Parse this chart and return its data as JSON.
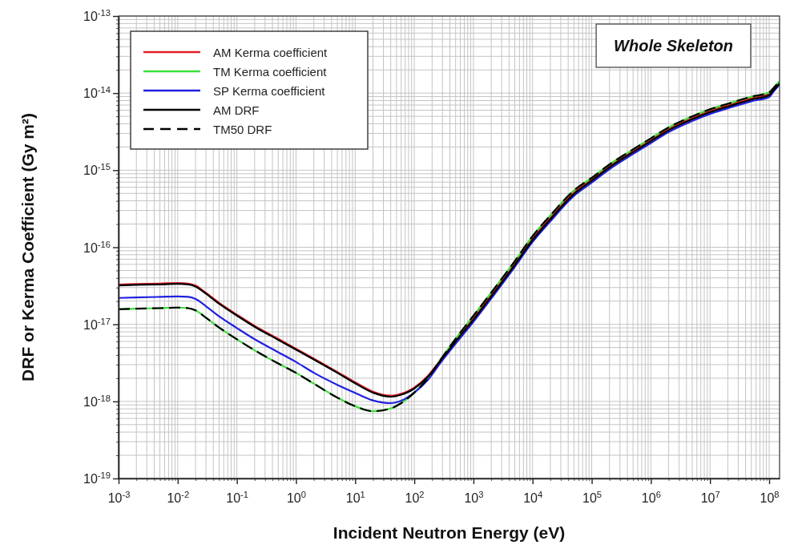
{
  "chart_data": {
    "type": "line",
    "xlabel": "Incident Neutron Energy (eV)",
    "ylabel": "DRF or Kerma Coefficient (Gy m²)",
    "annotations": [
      "Whole Skeleton"
    ],
    "log": "xy",
    "grid": true,
    "legend": "top left",
    "xlim": [
      0.001,
      150000000.0
    ],
    "ylim": [
      1e-19,
      1e-13
    ],
    "xticks": [
      {
        "value": 0.001,
        "label": "10$^{-3}$"
      },
      {
        "value": 0.002,
        "label": null
      },
      {
        "value": 0.003,
        "label": null
      },
      {
        "value": 0.004,
        "label": null
      },
      {
        "value": 0.005,
        "label": null
      },
      {
        "value": 0.006,
        "label": null
      },
      {
        "value": 0.007,
        "label": null
      },
      {
        "value": 0.008,
        "label": null
      },
      {
        "value": 0.009,
        "label": null
      },
      {
        "value": 0.01,
        "label": "10$^{-2}$"
      },
      {
        "value": 0.02,
        "label": null
      },
      {
        "value": 0.03,
        "label": null
      },
      {
        "value": 0.04,
        "label": null
      },
      {
        "value": 0.05,
        "label": null
      },
      {
        "value": 0.06,
        "label": null
      },
      {
        "value": 0.07,
        "label": null
      },
      {
        "value": 0.08,
        "label": null
      },
      {
        "value": 0.09,
        "label": null
      },
      {
        "value": 0.1,
        "label": "10$^{-1}$"
      },
      {
        "value": 0.2,
        "label": null
      },
      {
        "value": 0.3,
        "label": null
      },
      {
        "value": 0.4,
        "label": null
      },
      {
        "value": 0.5,
        "label": null
      },
      {
        "value": 0.6,
        "label": null
      },
      {
        "value": 0.7,
        "label": null
      },
      {
        "value": 0.8,
        "label": null
      },
      {
        "value": 0.9,
        "label": null
      },
      {
        "value": 1,
        "label": "10$^{0}$"
      },
      {
        "value": 2,
        "label": null
      },
      {
        "value": 3,
        "label": null
      },
      {
        "value": 4,
        "label": null
      },
      {
        "value": 5,
        "label": null
      },
      {
        "value": 6,
        "label": null
      },
      {
        "value": 7,
        "label": null
      },
      {
        "value": 8,
        "label": null
      },
      {
        "value": 9,
        "label": null
      },
      {
        "value": 10,
        "label": "10$^{1}$"
      },
      {
        "value": 20,
        "label": null
      },
      {
        "value": 30,
        "label": null
      },
      {
        "value": 40,
        "label": null
      },
      {
        "value": 50,
        "label": null
      },
      {
        "value": 60,
        "label": null
      },
      {
        "value": 70,
        "label": null
      },
      {
        "value": 80,
        "label": null
      },
      {
        "value": 90,
        "label": null
      },
      {
        "value": 100,
        "label": "10$^{2}$"
      },
      {
        "value": 200,
        "label": null
      },
      {
        "value": 300,
        "label": null
      },
      {
        "value": 400,
        "label": null
      },
      {
        "value": 500,
        "label": null
      },
      {
        "value": 600,
        "label": null
      },
      {
        "value": 700,
        "label": null
      },
      {
        "value": 800,
        "label": null
      },
      {
        "value": 900,
        "label": null
      },
      {
        "value": 1000,
        "label": "10$^{3}$"
      },
      {
        "value": 2000,
        "label": null
      },
      {
        "value": 3000,
        "label": null
      },
      {
        "value": 4000,
        "label": null
      },
      {
        "value": 5000,
        "label": null
      },
      {
        "value": 6000,
        "label": null
      },
      {
        "value": 7000,
        "label": null
      },
      {
        "value": 8000,
        "label": null
      },
      {
        "value": 9000,
        "label": null
      },
      {
        "value": 10000.0,
        "label": "10$^{4}$"
      },
      {
        "value": 20000.0,
        "label": null
      },
      {
        "value": 30000.0,
        "label": null
      },
      {
        "value": 40000.0,
        "label": null
      },
      {
        "value": 50000.0,
        "label": null
      },
      {
        "value": 60000.0,
        "label": null
      },
      {
        "value": 70000.0,
        "label": null
      },
      {
        "value": 80000.0,
        "label": null
      },
      {
        "value": 90000.0,
        "label": null
      },
      {
        "value": 100000.0,
        "label": "10$^{5}$"
      },
      {
        "value": 200000.0,
        "label": null
      },
      {
        "value": 300000.0,
        "label": null
      },
      {
        "value": 400000.0,
        "label": null
      },
      {
        "value": 500000.0,
        "label": null
      },
      {
        "value": 600000.0,
        "label": null
      },
      {
        "value": 700000.0,
        "label": null
      },
      {
        "value": 800000.0,
        "label": null
      },
      {
        "value": 900000.0,
        "label": null
      },
      {
        "value": 1000000.0,
        "label": "10$^{6}$"
      },
      {
        "value": 2000000.0,
        "label": null
      },
      {
        "value": 3000000.0,
        "label": null
      },
      {
        "value": 4000000.0,
        "label": null
      },
      {
        "value": 5000000.0,
        "label": null
      },
      {
        "value": 6000000.0,
        "label": null
      },
      {
        "value": 7000000.0,
        "label": null
      },
      {
        "value": 8000000.0,
        "label": null
      },
      {
        "value": 9000000.0,
        "label": null
      },
      {
        "value": 10000000.0,
        "label": "10$^{7}$"
      },
      {
        "value": 20000000.0,
        "label": null
      },
      {
        "value": 30000000.0,
        "label": null
      },
      {
        "value": 40000000.0,
        "label": null
      },
      {
        "value": 50000000.0,
        "label": null
      },
      {
        "value": 60000000.0,
        "label": null
      },
      {
        "value": 70000000.0,
        "label": null
      },
      {
        "value": 80000000.0,
        "label": null
      },
      {
        "value": 90000000.0,
        "label": null
      },
      {
        "value": 100000000.0,
        "label": "10$^{8}$"
      }
    ],
    "yticks": [
      {
        "value": 1e-19,
        "label": "10$^{-19}$"
      },
      {
        "value": 2e-19,
        "label": null
      },
      {
        "value": 3e-19,
        "label": null
      },
      {
        "value": 4e-19,
        "label": null
      },
      {
        "value": 5e-19,
        "label": null
      },
      {
        "value": 6e-19,
        "label": null
      },
      {
        "value": 7e-19,
        "label": null
      },
      {
        "value": 8e-19,
        "label": null
      },
      {
        "value": 9e-19,
        "label": null
      },
      {
        "value": 1e-18,
        "label": "10$^{-18}$"
      },
      {
        "value": 2e-18,
        "label": null
      },
      {
        "value": 3e-18,
        "label": null
      },
      {
        "value": 4e-18,
        "label": null
      },
      {
        "value": 5e-18,
        "label": null
      },
      {
        "value": 6e-18,
        "label": null
      },
      {
        "value": 7e-18,
        "label": null
      },
      {
        "value": 8e-18,
        "label": null
      },
      {
        "value": 9e-18,
        "label": null
      },
      {
        "value": 1e-17,
        "label": "10$^{-17}$"
      },
      {
        "value": 2e-17,
        "label": null
      },
      {
        "value": 3e-17,
        "label": null
      },
      {
        "value": 4e-17,
        "label": null
      },
      {
        "value": 5e-17,
        "label": null
      },
      {
        "value": 6e-17,
        "label": null
      },
      {
        "value": 7e-17,
        "label": null
      },
      {
        "value": 8e-17,
        "label": null
      },
      {
        "value": 9e-17,
        "label": null
      },
      {
        "value": 1e-16,
        "label": "10$^{-16}$"
      },
      {
        "value": 2e-16,
        "label": null
      },
      {
        "value": 3e-16,
        "label": null
      },
      {
        "value": 4e-16,
        "label": null
      },
      {
        "value": 5e-16,
        "label": null
      },
      {
        "value": 6e-16,
        "label": null
      },
      {
        "value": 7e-16,
        "label": null
      },
      {
        "value": 8e-16,
        "label": null
      },
      {
        "value": 9e-16,
        "label": null
      },
      {
        "value": 1e-15,
        "label": "10$^{-15}$"
      },
      {
        "value": 2e-15,
        "label": null
      },
      {
        "value": 3e-15,
        "label": null
      },
      {
        "value": 4e-15,
        "label": null
      },
      {
        "value": 5e-15,
        "label": null
      },
      {
        "value": 6e-15,
        "label": null
      },
      {
        "value": 7e-15,
        "label": null
      },
      {
        "value": 8e-15,
        "label": null
      },
      {
        "value": 9e-15,
        "label": null
      },
      {
        "value": 1e-14,
        "label": "10$^{-14}$"
      },
      {
        "value": 2e-14,
        "label": null
      },
      {
        "value": 3e-14,
        "label": null
      },
      {
        "value": 4e-14,
        "label": null
      },
      {
        "value": 5e-14,
        "label": null
      },
      {
        "value": 6e-14,
        "label": null
      },
      {
        "value": 7e-14,
        "label": null
      },
      {
        "value": 8e-14,
        "label": null
      },
      {
        "value": 9e-14,
        "label": null
      },
      {
        "value": 1e-13,
        "label": "10$^{-13}$"
      }
    ],
    "x": [
      0.001,
      0.002,
      0.005,
      0.01,
      0.015,
      0.02,
      0.03,
      0.05,
      0.1,
      0.2,
      0.5,
      1,
      2,
      5,
      10,
      20,
      40,
      60,
      100,
      170,
      280,
      500,
      1000,
      2000,
      5000,
      10000.0,
      20000.0,
      50000.0,
      100000.0,
      200000.0,
      500000.0,
      1000000.0,
      2000000.0,
      5000000.0,
      10000000.0,
      20000000.0,
      50000000.0,
      100000000.0,
      120000000.0,
      150000000.0
    ],
    "series": [
      {
        "name": "AM Kerma coefficient",
        "color": "#e41e26",
        "values": [
          3.27e-17,
          3.32e-17,
          3.37e-17,
          3.42e-17,
          3.37e-17,
          3.17e-17,
          2.55e-17,
          1.89e-17,
          1.33e-17,
          9.5e-18,
          6.45e-18,
          4.8e-18,
          3.58e-18,
          2.4e-18,
          1.76e-18,
          1.33e-18,
          1.18e-18,
          1.25e-18,
          1.5e-18,
          2.14e-18,
          3.48e-18,
          6.25e-18,
          1.21e-17,
          2.42e-17,
          6.2e-17,
          1.3e-16,
          2.43e-16,
          5.1e-16,
          7.6e-16,
          1.13e-15,
          1.78e-15,
          2.48e-15,
          3.42e-15,
          4.76e-15,
          5.88e-15,
          6.94e-15,
          8.57e-15,
          9.78e-15,
          1.14e-14,
          1.38e-14
        ]
      },
      {
        "name": "TM Kerma coefficient",
        "color": "#3ae03a",
        "values": [
          1.57e-17,
          1.6e-17,
          1.62e-17,
          1.65e-17,
          1.62e-17,
          1.52e-17,
          1.22e-17,
          9.1e-18,
          6.4e-18,
          4.6e-18,
          3.1e-18,
          2.35e-18,
          1.7e-18,
          1.12e-18,
          8.65e-19,
          7.45e-19,
          8.1e-19,
          9.5e-19,
          1.3e-18,
          2e-18,
          3.5e-18,
          6.5e-18,
          1.29e-17,
          2.58e-17,
          6.6e-17,
          1.39e-16,
          2.59e-16,
          5.45e-16,
          7.95e-16,
          1.19e-15,
          1.86e-15,
          2.59e-15,
          3.59e-15,
          4.99e-15,
          6.16e-15,
          7.27e-15,
          8.98e-15,
          1.02e-14,
          1.18e-14,
          1.43e-14
        ]
      },
      {
        "name": "SP Kerma coefficient",
        "color": "#2020e0",
        "values": [
          2.2e-17,
          2.23e-17,
          2.27e-17,
          2.3e-17,
          2.27e-17,
          2.13e-17,
          1.72e-17,
          1.27e-17,
          8.95e-18,
          6.4e-18,
          4.35e-18,
          3.25e-18,
          2.35e-18,
          1.64e-18,
          1.29e-18,
          1.03e-18,
          9.5e-19,
          1.02e-18,
          1.3e-18,
          1.9e-18,
          3.2e-18,
          5.6e-18,
          1.08e-17,
          2.16e-17,
          5.55e-17,
          1.17e-16,
          2.17e-16,
          4.65e-16,
          6.9e-16,
          1.03e-15,
          1.62e-15,
          2.25e-15,
          3.12e-15,
          4.35e-15,
          5.37e-15,
          6.34e-15,
          7.83e-15,
          8.93e-15,
          1.06e-14,
          1.29e-14
        ]
      },
      {
        "name": "AM DRF",
        "color": "#000000",
        "values": [
          3.2e-17,
          3.25e-17,
          3.3e-17,
          3.35e-17,
          3.3e-17,
          3.1e-17,
          2.5e-17,
          1.85e-17,
          1.3e-17,
          9.3e-18,
          6.3e-18,
          4.7e-18,
          3.5e-18,
          2.35e-18,
          1.72e-18,
          1.3e-18,
          1.15e-18,
          1.22e-18,
          1.47e-18,
          2.09e-18,
          3.4e-18,
          6e-18,
          1.15e-17,
          2.3e-17,
          5.9e-17,
          1.24e-16,
          2.31e-16,
          4.9e-16,
          7.3e-16,
          1.09e-15,
          1.71e-15,
          2.38e-15,
          3.29e-15,
          4.58e-15,
          5.65e-15,
          6.67e-15,
          8.24e-15,
          9.4e-15,
          1.1e-14,
          1.33e-14
        ]
      },
      {
        "name": "TM50 DRF",
        "color": "#000000",
        "line_style": "dashed",
        "values": [
          1.57e-17,
          1.6e-17,
          1.62e-17,
          1.65e-17,
          1.62e-17,
          1.52e-17,
          1.22e-17,
          9.1e-18,
          6.4e-18,
          4.6e-18,
          3.1e-18,
          2.35e-18,
          1.7e-18,
          1.12e-18,
          8.65e-19,
          7.45e-19,
          8.1e-19,
          9.5e-19,
          1.3e-18,
          2e-18,
          3.5e-18,
          6.5e-18,
          1.29e-17,
          2.58e-17,
          6.6e-17,
          1.39e-16,
          2.59e-16,
          5.45e-16,
          7.95e-16,
          1.19e-15,
          1.86e-15,
          2.59e-15,
          3.59e-15,
          4.99e-15,
          6.16e-15,
          7.27e-15,
          8.98e-15,
          1.02e-14,
          1.18e-14,
          1.43e-14
        ]
      }
    ]
  }
}
